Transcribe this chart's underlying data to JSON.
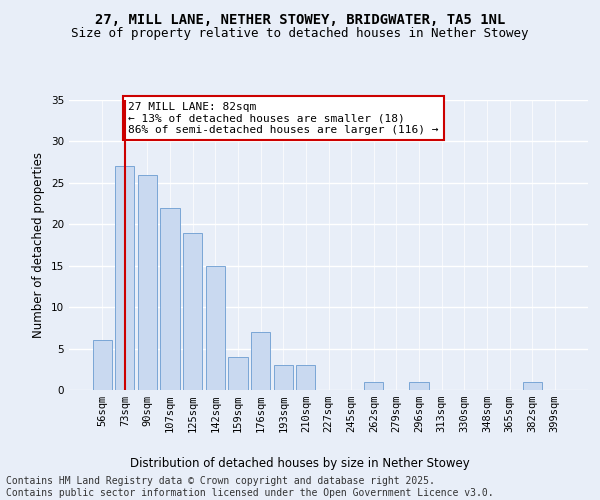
{
  "title1": "27, MILL LANE, NETHER STOWEY, BRIDGWATER, TA5 1NL",
  "title2": "Size of property relative to detached houses in Nether Stowey",
  "xlabel": "Distribution of detached houses by size in Nether Stowey",
  "ylabel": "Number of detached properties",
  "categories": [
    "56sqm",
    "73sqm",
    "90sqm",
    "107sqm",
    "125sqm",
    "142sqm",
    "159sqm",
    "176sqm",
    "193sqm",
    "210sqm",
    "227sqm",
    "245sqm",
    "262sqm",
    "279sqm",
    "296sqm",
    "313sqm",
    "330sqm",
    "348sqm",
    "365sqm",
    "382sqm",
    "399sqm"
  ],
  "values": [
    6,
    27,
    26,
    22,
    19,
    15,
    4,
    7,
    3,
    3,
    0,
    0,
    1,
    0,
    1,
    0,
    0,
    0,
    0,
    1,
    0
  ],
  "bar_color": "#c9d9f0",
  "bar_edge_color": "#7aa6d6",
  "vline_x": 1,
  "vline_color": "#cc0000",
  "annotation_text": "27 MILL LANE: 82sqm\n← 13% of detached houses are smaller (18)\n86% of semi-detached houses are larger (116) →",
  "annotation_box_color": "#ffffff",
  "annotation_edge_color": "#cc0000",
  "ylim": [
    0,
    35
  ],
  "yticks": [
    0,
    5,
    10,
    15,
    20,
    25,
    30,
    35
  ],
  "bg_color": "#e8eef8",
  "plot_bg_color": "#e8eef8",
  "footer_text": "Contains HM Land Registry data © Crown copyright and database right 2025.\nContains public sector information licensed under the Open Government Licence v3.0.",
  "title_fontsize": 10,
  "subtitle_fontsize": 9,
  "axis_label_fontsize": 8.5,
  "tick_fontsize": 7.5,
  "annotation_fontsize": 8,
  "footer_fontsize": 7
}
